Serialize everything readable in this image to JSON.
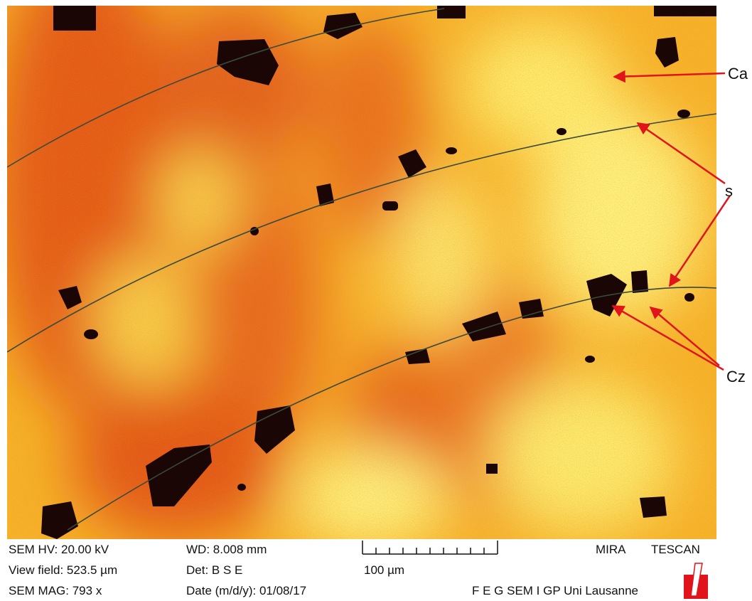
{
  "annotations": {
    "ca": "Ca",
    "s": "s",
    "cz": "Cz"
  },
  "info_bar": {
    "hv": "SEM  HV: 20.00  kV",
    "view_field": "View field: 523.5  µm",
    "mag": "SEM  MAG: 793  x",
    "wd": "WD: 8.008  mm",
    "det": "Det: B S E",
    "date": "Date (m/d/y): 01/08/17",
    "scale": "100  µm",
    "brand": "MIRA",
    "maker": "TESCAN",
    "lab": "F E G  SEM  I GP  Uni  Lausanne"
  }
}
